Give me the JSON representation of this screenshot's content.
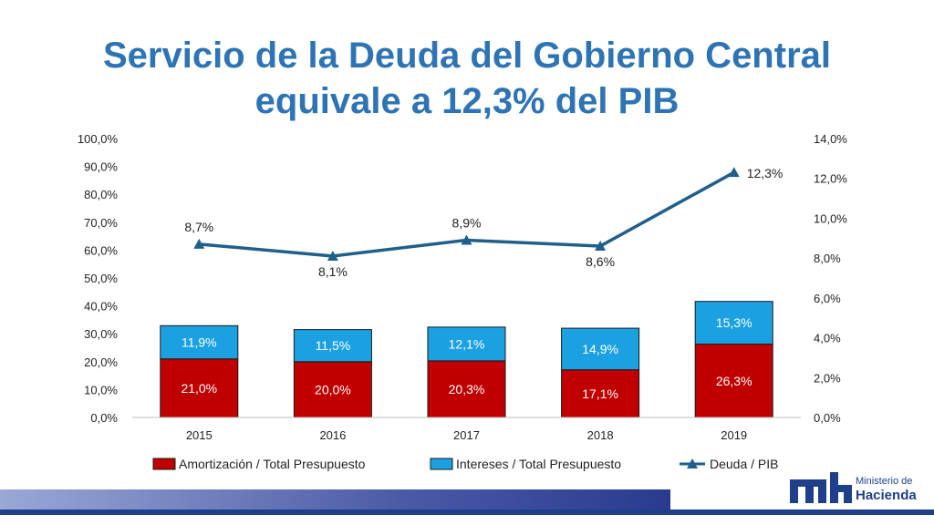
{
  "title": {
    "line1": "Servicio de la Deuda del Gobierno Central",
    "line2": "equivale a 12,3% del PIB"
  },
  "logo": {
    "line1": "Ministerio de",
    "line2": "Hacienda"
  },
  "chart_data": {
    "type": "bar",
    "stacked": true,
    "categories": [
      "2015",
      "2016",
      "2017",
      "2018",
      "2019"
    ],
    "series": [
      {
        "name": "Amortización / Total Presupuesto",
        "type": "bar",
        "axis": "left",
        "color": "#c00000",
        "values": [
          21.0,
          20.0,
          20.3,
          17.1,
          26.3
        ],
        "labels": [
          "21,0%",
          "20,0%",
          "20,3%",
          "17,1%",
          "26,3%"
        ]
      },
      {
        "name": "Intereses / Total Presupuesto",
        "type": "bar",
        "axis": "left",
        "color": "#1ba1e2",
        "values": [
          11.9,
          11.5,
          12.1,
          14.9,
          15.3
        ],
        "labels": [
          "11,9%",
          "11,5%",
          "12,1%",
          "14,9%",
          "15,3%"
        ]
      },
      {
        "name": "Deuda / PIB",
        "type": "line",
        "axis": "right",
        "color": "#1f5f8b",
        "values": [
          8.7,
          8.1,
          8.9,
          8.6,
          12.3
        ],
        "labels": [
          "8,7%",
          "8,1%",
          "8,9%",
          "8,6%",
          "12,3%"
        ]
      }
    ],
    "y_left": {
      "min": 0,
      "max": 100,
      "ticks": [
        "0,0%",
        "10,0%",
        "20,0%",
        "30,0%",
        "40,0%",
        "50,0%",
        "60,0%",
        "70,0%",
        "80,0%",
        "90,0%",
        "100,0%"
      ]
    },
    "y_right": {
      "min": 0,
      "max": 14,
      "ticks": [
        "0,0%",
        "2,0%",
        "4,0%",
        "6,0%",
        "8,0%",
        "10,0%",
        "12,0%",
        "14,0%"
      ]
    },
    "grid": false,
    "legend": "bottom"
  }
}
